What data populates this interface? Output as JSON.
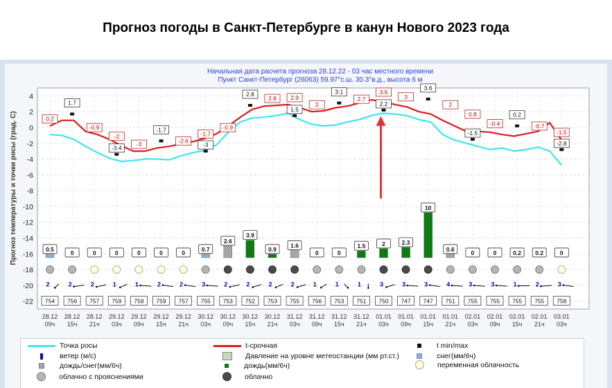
{
  "heading": {
    "title": "Прогноз погоды в Санкт-Петербурге в канун Нового 2023 года"
  },
  "chart_data": {
    "type": "line",
    "subtitle_lines": [
      "Начальная дата расчета прогноза 28.12.22 - 03 час местного времени",
      "Пункт  Санкт-Петербург (26063)   59.97°с.ш.  30.3°в.д., высота 6 м"
    ],
    "ylabel": "Прогноз температуры и точки росы (град. С)",
    "ylim": [
      -23,
      5
    ],
    "yticks": [
      4,
      2,
      0,
      -2,
      -4,
      -6,
      -8,
      -10,
      -12,
      -14,
      -16,
      -18,
      -20,
      -22
    ],
    "grid": true,
    "x_labels": [
      {
        "date": "28.12",
        "time": "09ч"
      },
      {
        "date": "28.12",
        "time": "15ч"
      },
      {
        "date": "28.12",
        "time": "21ч"
      },
      {
        "date": "29.12",
        "time": "03ч"
      },
      {
        "date": "29.12",
        "time": "09ч"
      },
      {
        "date": "29.12",
        "time": "15ч"
      },
      {
        "date": "29.12",
        "time": "21ч"
      },
      {
        "date": "30.12",
        "time": "03ч"
      },
      {
        "date": "30.12",
        "time": "09ч"
      },
      {
        "date": "30.12",
        "time": "15ч"
      },
      {
        "date": "30.12",
        "time": "21ч"
      },
      {
        "date": "31.12",
        "time": "03ч"
      },
      {
        "date": "31.12",
        "time": "09ч"
      },
      {
        "date": "31.12",
        "time": "15ч"
      },
      {
        "date": "31.12",
        "time": "21ч"
      },
      {
        "date": "01.01",
        "time": "03ч"
      },
      {
        "date": "01.01",
        "time": "09ч"
      },
      {
        "date": "01.01",
        "time": "15ч"
      },
      {
        "date": "01.01",
        "time": "21ч"
      },
      {
        "date": "02.01",
        "time": "03ч"
      },
      {
        "date": "02.01",
        "time": "09ч"
      },
      {
        "date": "02.01",
        "time": "15ч"
      },
      {
        "date": "02.01",
        "time": "21ч"
      },
      {
        "date": "03.01",
        "time": "03ч"
      }
    ],
    "temperature_curve": [
      0.2,
      0.9,
      0.9,
      -0.5,
      -0.9,
      -1.5,
      -2.3,
      -3.0,
      -3.0,
      -2.6,
      -2.4,
      -2.1,
      -1.8,
      -1.4,
      -0.8,
      0.2,
      1.3,
      2.3,
      2.7,
      2.8,
      2.9,
      2.5,
      2.0,
      2.1,
      2.5,
      2.7,
      3.1,
      3.5,
      3.3,
      2.9,
      2.6,
      2.0,
      1.7,
      0.9,
      0.2,
      -0.5,
      -0.5,
      -0.6,
      -0.9,
      -1.1,
      -0.8,
      -0.5,
      0.6,
      -1.6
    ],
    "dew_point_curve": [
      -0.9,
      -1.0,
      -1.5,
      -2.4,
      -3.2,
      -3.9,
      -4.3,
      -4.2,
      -4.0,
      -4.0,
      -4.1,
      -3.6,
      -3.2,
      -2.9,
      -2.2,
      -0.6,
      0.7,
      1.2,
      1.3,
      1.5,
      1.8,
      1.0,
      0.4,
      0.2,
      0.3,
      0.7,
      1.0,
      1.5,
      1.8,
      1.7,
      1.5,
      1.0,
      0.7,
      -0.9,
      -1.6,
      -2.0,
      -2.4,
      -2.8,
      -2.6,
      -3.0,
      -2.8,
      -2.5,
      -3.0,
      -4.8
    ],
    "t_labels": [
      {
        "i": 0.0,
        "v": "0.2"
      },
      {
        "i": 1.0,
        "v": "1.7",
        "kind": "max"
      },
      {
        "i": 2.0,
        "v": "-0.9"
      },
      {
        "i": 3.0,
        "v": "-2"
      },
      {
        "i": 3.0,
        "v": "-3.4",
        "kind": "min"
      },
      {
        "i": 4.0,
        "v": "-3"
      },
      {
        "i": 5.0,
        "v": "-1.7",
        "kind": "max"
      },
      {
        "i": 6.0,
        "v": "-2.6"
      },
      {
        "i": 7.0,
        "v": "-1.7"
      },
      {
        "i": 7.0,
        "v": "-3",
        "kind": "min"
      },
      {
        "i": 8.0,
        "v": "-0.9"
      },
      {
        "i": 9.0,
        "v": "2.8",
        "kind": "max"
      },
      {
        "i": 10.0,
        "v": "2.8"
      },
      {
        "i": 11.0,
        "v": "2.9"
      },
      {
        "i": 11.0,
        "v": "1.5",
        "kind": "min"
      },
      {
        "i": 12.0,
        "v": "2"
      },
      {
        "i": 13.0,
        "v": "3.1",
        "kind": "max"
      },
      {
        "i": 14.0,
        "v": "2.7"
      },
      {
        "i": 15.0,
        "v": "3.6"
      },
      {
        "i": 15.0,
        "v": "2.2",
        "kind": "min"
      },
      {
        "i": 16.0,
        "v": "3"
      },
      {
        "i": 17.0,
        "v": "3.6",
        "kind": "max"
      },
      {
        "i": 18.0,
        "v": "2"
      },
      {
        "i": 19.0,
        "v": "0.8"
      },
      {
        "i": 19.0,
        "v": "-1.5",
        "kind": "min"
      },
      {
        "i": 20.0,
        "v": "-0.4"
      },
      {
        "i": 21.0,
        "v": "0.2",
        "kind": "max"
      },
      {
        "i": 22.0,
        "v": "-0.7"
      },
      {
        "i": 23.0,
        "v": "-1.5"
      },
      {
        "i": 23.0,
        "v": "-2.8",
        "kind": "min"
      }
    ],
    "precipitation": {
      "values": [
        "0.5",
        "0",
        "0",
        "0",
        "0",
        "0",
        "0",
        "0.7",
        "2.6",
        "3.9",
        "0.9",
        "1.6",
        "0",
        "0",
        "1.5",
        "2",
        "2.3",
        "10",
        "0.6",
        "0",
        "0",
        "0.2",
        "0.2",
        "0"
      ],
      "type": [
        "snow",
        "",
        "",
        "",
        "",
        "",
        "",
        "snow",
        "mixed",
        "rain",
        "rain",
        "mixed",
        "",
        "",
        "rain",
        "rain",
        "rain",
        "rain",
        "mixed",
        "",
        "",
        "",
        "",
        ""
      ]
    },
    "cloud": [
      "partly_clear",
      "partly_clear",
      "variable",
      "variable",
      "variable",
      "variable",
      "variable",
      "partly_clear",
      "overcast",
      "overcast",
      "overcast",
      "overcast",
      "partly_clear",
      "partly_clear",
      "partly_clear",
      "overcast",
      "overcast",
      "overcast",
      "partly_clear",
      "partly_clear",
      "partly_clear",
      "partly_clear",
      "partly_clear",
      "variable"
    ],
    "wind": {
      "speed": [
        "2",
        "2",
        "2",
        "1",
        "1",
        "2",
        "2",
        "3",
        "2",
        "2",
        "2",
        "2",
        "1",
        "1",
        "1",
        "3",
        "3",
        "3",
        "4",
        "3",
        "3",
        "1",
        "2",
        "3"
      ],
      "direction_deg": [
        200,
        250,
        240,
        220,
        280,
        290,
        290,
        280,
        240,
        230,
        220,
        230,
        210,
        160,
        180,
        230,
        280,
        290,
        280,
        280,
        280,
        270,
        260,
        290
      ]
    },
    "pressure": [
      "754",
      "756",
      "757",
      "759",
      "759",
      "759",
      "757",
      "755",
      "753",
      "752",
      "753",
      "755",
      "756",
      "753",
      "751",
      "750",
      "747",
      "747",
      "751",
      "755",
      "755",
      "755",
      "755",
      "758"
    ],
    "annotation": "red-arrow",
    "colors": {
      "temperature": "#dc1c1c",
      "dew_point": "#3ee6ee",
      "rain": "#0f7a12",
      "mixed": "#a6a6a6",
      "snow": "#8fb1d9",
      "wind": "#0a0aa0"
    }
  },
  "legend": {
    "items": [
      {
        "label": "Точка росы"
      },
      {
        "label": "t-срочная"
      },
      {
        "label": "t min/max"
      },
      {
        "label": "ветер (м/с)"
      },
      {
        "label": "Давление на уровне метеостанции (мм рт.ст.)"
      },
      {
        "label": "снег(мм/6ч)"
      },
      {
        "label": "дождь/снег(мм/6ч)"
      },
      {
        "label": "дождь(мм/6ч)"
      },
      {
        "label": "переменная облачность"
      },
      {
        "label": "облачно с прояснениями"
      },
      {
        "label": "облачно"
      }
    ]
  }
}
